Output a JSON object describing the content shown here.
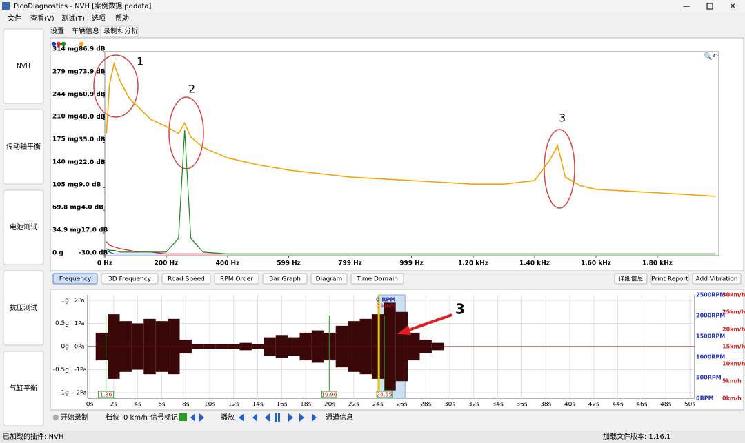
{
  "window": {
    "title": "PicoDiagnostics - NVH [案例数据.pddata]"
  },
  "menu": [
    "文件",
    "查看(V)",
    "测试(T)",
    "选项",
    "帮助"
  ],
  "sidebar": [
    "NVH",
    "传动轴平衡",
    "电池测试",
    "抗压测试",
    "气缸平衡"
  ],
  "tabs": [
    "设置",
    "车辆信息",
    "录制和分析"
  ],
  "chart_data": [
    {
      "type": "line",
      "xlim": [
        0,
        2000
      ],
      "xticks": [
        {
          "value": 0,
          "label": "0 Hz"
        },
        {
          "value": 200,
          "label": "200 Hz"
        },
        {
          "value": 400,
          "label": "400 Hz"
        },
        {
          "value": 599,
          "label": "599 Hz"
        },
        {
          "value": 799,
          "label": "799 Hz"
        },
        {
          "value": 999,
          "label": "999 Hz"
        },
        {
          "value": 1200,
          "label": "1.20 kHz"
        },
        {
          "value": 1400,
          "label": "1.40 kHz"
        },
        {
          "value": 1600,
          "label": "1.60 kHz"
        },
        {
          "value": 1800,
          "label": "1.80 kHz"
        }
      ],
      "ylim": [
        -30,
        86.9
      ],
      "yticks": [
        {
          "value": -30,
          "label": "-30.0 dB"
        },
        {
          "value": -17,
          "label": "-17.0 dB"
        },
        {
          "value": -4,
          "label": "-4.0 dB"
        },
        {
          "value": 9,
          "label": "9.0 dB"
        },
        {
          "value": 22,
          "label": "22.0 dB"
        },
        {
          "value": 35,
          "label": "35.0 dB"
        },
        {
          "value": 48,
          "label": "48.0 dB"
        },
        {
          "value": 60.9,
          "label": "60.9 dB"
        },
        {
          "value": 73.9,
          "label": "73.9 dB"
        },
        {
          "value": 86.9,
          "label": "86.9 dB"
        }
      ],
      "y2lim": [
        0,
        314
      ],
      "y2ticks": [
        {
          "value": 0,
          "label": "0 g"
        },
        {
          "value": 34.9,
          "label": "34.9 mg"
        },
        {
          "value": 69.8,
          "label": "69.8 mg"
        },
        {
          "value": 105,
          "label": "105 mg"
        },
        {
          "value": 140,
          "label": "140 mg"
        },
        {
          "value": 175,
          "label": "175 mg"
        },
        {
          "value": 210,
          "label": "210 mg"
        },
        {
          "value": 244,
          "label": "244 mg"
        },
        {
          "value": 279,
          "label": "279 mg"
        },
        {
          "value": 314,
          "label": "314 mg"
        }
      ],
      "x": [
        5,
        15,
        30,
        50,
        80,
        110,
        150,
        200,
        240,
        260,
        280,
        320,
        400,
        500,
        600,
        700,
        800,
        900,
        1000,
        1100,
        1200,
        1300,
        1400,
        1450,
        1475,
        1500,
        1550,
        1600,
        1700,
        1800,
        1900,
        1990
      ],
      "series": [
        {
          "color": "#1f3fd0",
          "values": [
            -27,
            -28,
            -29,
            -29,
            -29,
            -29,
            -29,
            -29,
            -29,
            -29,
            -29,
            -29,
            -29,
            -29,
            -29,
            -29,
            -29,
            -29,
            -29,
            -29,
            -29,
            -29,
            -29,
            -29,
            -29,
            -29,
            -29,
            -29,
            -29,
            -29,
            -29,
            -29
          ]
        },
        {
          "color": "#e02020",
          "values": [
            -22,
            -24,
            -25,
            -26,
            -27,
            -28,
            -28,
            -29,
            -29,
            -29,
            -29,
            -29,
            -29,
            -29,
            -29,
            -29,
            -29,
            -29,
            -29,
            -29,
            -29,
            -29,
            -29,
            -29,
            -29,
            -29,
            -29,
            -29,
            -29,
            -29,
            -29,
            -29
          ]
        },
        {
          "color": "#1a8a1a",
          "values": [
            -26,
            -27,
            -27,
            -28,
            -28,
            -28,
            -28,
            -28,
            -20,
            42,
            -20,
            -28,
            -29,
            -29,
            -29,
            -29,
            -29,
            -29,
            -29,
            -29,
            -29,
            -29,
            -29,
            -29,
            -29,
            -29,
            -29,
            -29,
            -29,
            -29,
            -29,
            -29
          ]
        },
        {
          "color": "#f5a300",
          "values": [
            40,
            68,
            80,
            70,
            60,
            55,
            48,
            44,
            40,
            46,
            38,
            32,
            26,
            22,
            19,
            17,
            15,
            14,
            13,
            12,
            11,
            11,
            13,
            25,
            33,
            15,
            10,
            8,
            7,
            6,
            5,
            4
          ]
        }
      ],
      "annotations": [
        "1",
        "2",
        "3"
      ]
    },
    {
      "type": "bar",
      "xlim": [
        0,
        50
      ],
      "xticks": [
        {
          "value": 0,
          "label": "0s"
        },
        {
          "value": 2,
          "label": "2s"
        },
        {
          "value": 4,
          "label": "4s"
        },
        {
          "value": 6,
          "label": "6s"
        },
        {
          "value": 8,
          "label": "8s"
        },
        {
          "value": 10,
          "label": "10s"
        },
        {
          "value": 12,
          "label": "12s"
        },
        {
          "value": 14,
          "label": "14s"
        },
        {
          "value": 16,
          "label": "16s"
        },
        {
          "value": 18,
          "label": "18s"
        },
        {
          "value": 20,
          "label": "20s"
        },
        {
          "value": 22,
          "label": "22s"
        },
        {
          "value": 24,
          "label": "24s"
        },
        {
          "value": 26,
          "label": "26s"
        },
        {
          "value": 28,
          "label": "28s"
        },
        {
          "value": 30,
          "label": "30s"
        },
        {
          "value": 32,
          "label": "32s"
        },
        {
          "value": 34,
          "label": "34s"
        },
        {
          "value": 36,
          "label": "36s"
        },
        {
          "value": 38,
          "label": "38s"
        },
        {
          "value": 40,
          "label": "40s"
        },
        {
          "value": 42,
          "label": "42s"
        },
        {
          "value": 44,
          "label": "44s"
        },
        {
          "value": 46,
          "label": "46s"
        },
        {
          "value": 48,
          "label": "48s"
        },
        {
          "value": 50,
          "label": "50s"
        }
      ],
      "ylim": [
        -1.12,
        1.12
      ],
      "yticks": [
        {
          "value": 1,
          "label": "1g"
        },
        {
          "value": 0.5,
          "label": "0.5g"
        },
        {
          "value": 0,
          "label": "0g"
        },
        {
          "value": -0.5,
          "label": "-0.5g"
        },
        {
          "value": -1,
          "label": "-1g"
        }
      ],
      "y2lim": [
        -2.24,
        2.24
      ],
      "y2ticks": [
        {
          "value": 2,
          "label": "2Pa"
        },
        {
          "value": 1,
          "label": "1Pa"
        },
        {
          "value": 0,
          "label": "0Pa"
        },
        {
          "value": -1,
          "label": "-1Pa"
        },
        {
          "value": -2,
          "label": "-2Pa"
        }
      ],
      "y3lim": [
        0,
        2500
      ],
      "y3ticks": [
        {
          "value": 2500,
          "label": "2500RPM"
        },
        {
          "value": 2000,
          "label": "2000RPM"
        },
        {
          "value": 1500,
          "label": "1500RPM"
        },
        {
          "value": 1000,
          "label": "1000RPM"
        },
        {
          "value": 500,
          "label": "500RPM"
        },
        {
          "value": 0,
          "label": "0RPM"
        }
      ],
      "y4lim": [
        0,
        30
      ],
      "y4ticks": [
        {
          "value": 30,
          "label": "30km/h"
        },
        {
          "value": 25,
          "label": "25km/h"
        },
        {
          "value": 20,
          "label": "20km/h"
        },
        {
          "value": 15,
          "label": "15km/h"
        },
        {
          "value": 10,
          "label": "10km/h"
        },
        {
          "value": 5,
          "label": "5km/h"
        },
        {
          "value": 0,
          "label": "0km/h"
        }
      ],
      "x": [
        1,
        2,
        3,
        4,
        5,
        6,
        7,
        8,
        9,
        10,
        11,
        12,
        13,
        14,
        15,
        16,
        17,
        18,
        19,
        20,
        21,
        22,
        23,
        24,
        25,
        26,
        27,
        28,
        29
      ],
      "values": [
        0.3,
        0.7,
        0.55,
        0.5,
        0.6,
        0.55,
        0.6,
        0.15,
        0.05,
        0.05,
        0.05,
        0.05,
        0.08,
        0.05,
        0.2,
        0.25,
        0.2,
        0.3,
        0.35,
        0.3,
        0.45,
        0.55,
        0.6,
        0.7,
        0.95,
        0.75,
        0.3,
        0.15,
        0.08
      ],
      "color": "#3a0808",
      "markers": [
        1.36,
        19.96,
        24.55
      ],
      "overlay": [
        "0 RPM",
        "0 km/h"
      ],
      "annotation": "3"
    }
  ],
  "buttons": [
    "Frequency",
    "3D Frequency",
    "Road Speed",
    "RPM Order",
    "Bar Graph",
    "Diagram",
    "Time Domain"
  ],
  "right_buttons": [
    "详细信息",
    "Print Report",
    "Add Vibration"
  ],
  "toolbar": {
    "record": "开始录制",
    "gear": "档位",
    "speed": "0 km/h",
    "signal": "信号标记",
    "play": "播放",
    "channel": "通道信息"
  },
  "status": {
    "plugins": "已加载的插件:  NVH",
    "version": "加载文件版本: 1.16.1"
  }
}
